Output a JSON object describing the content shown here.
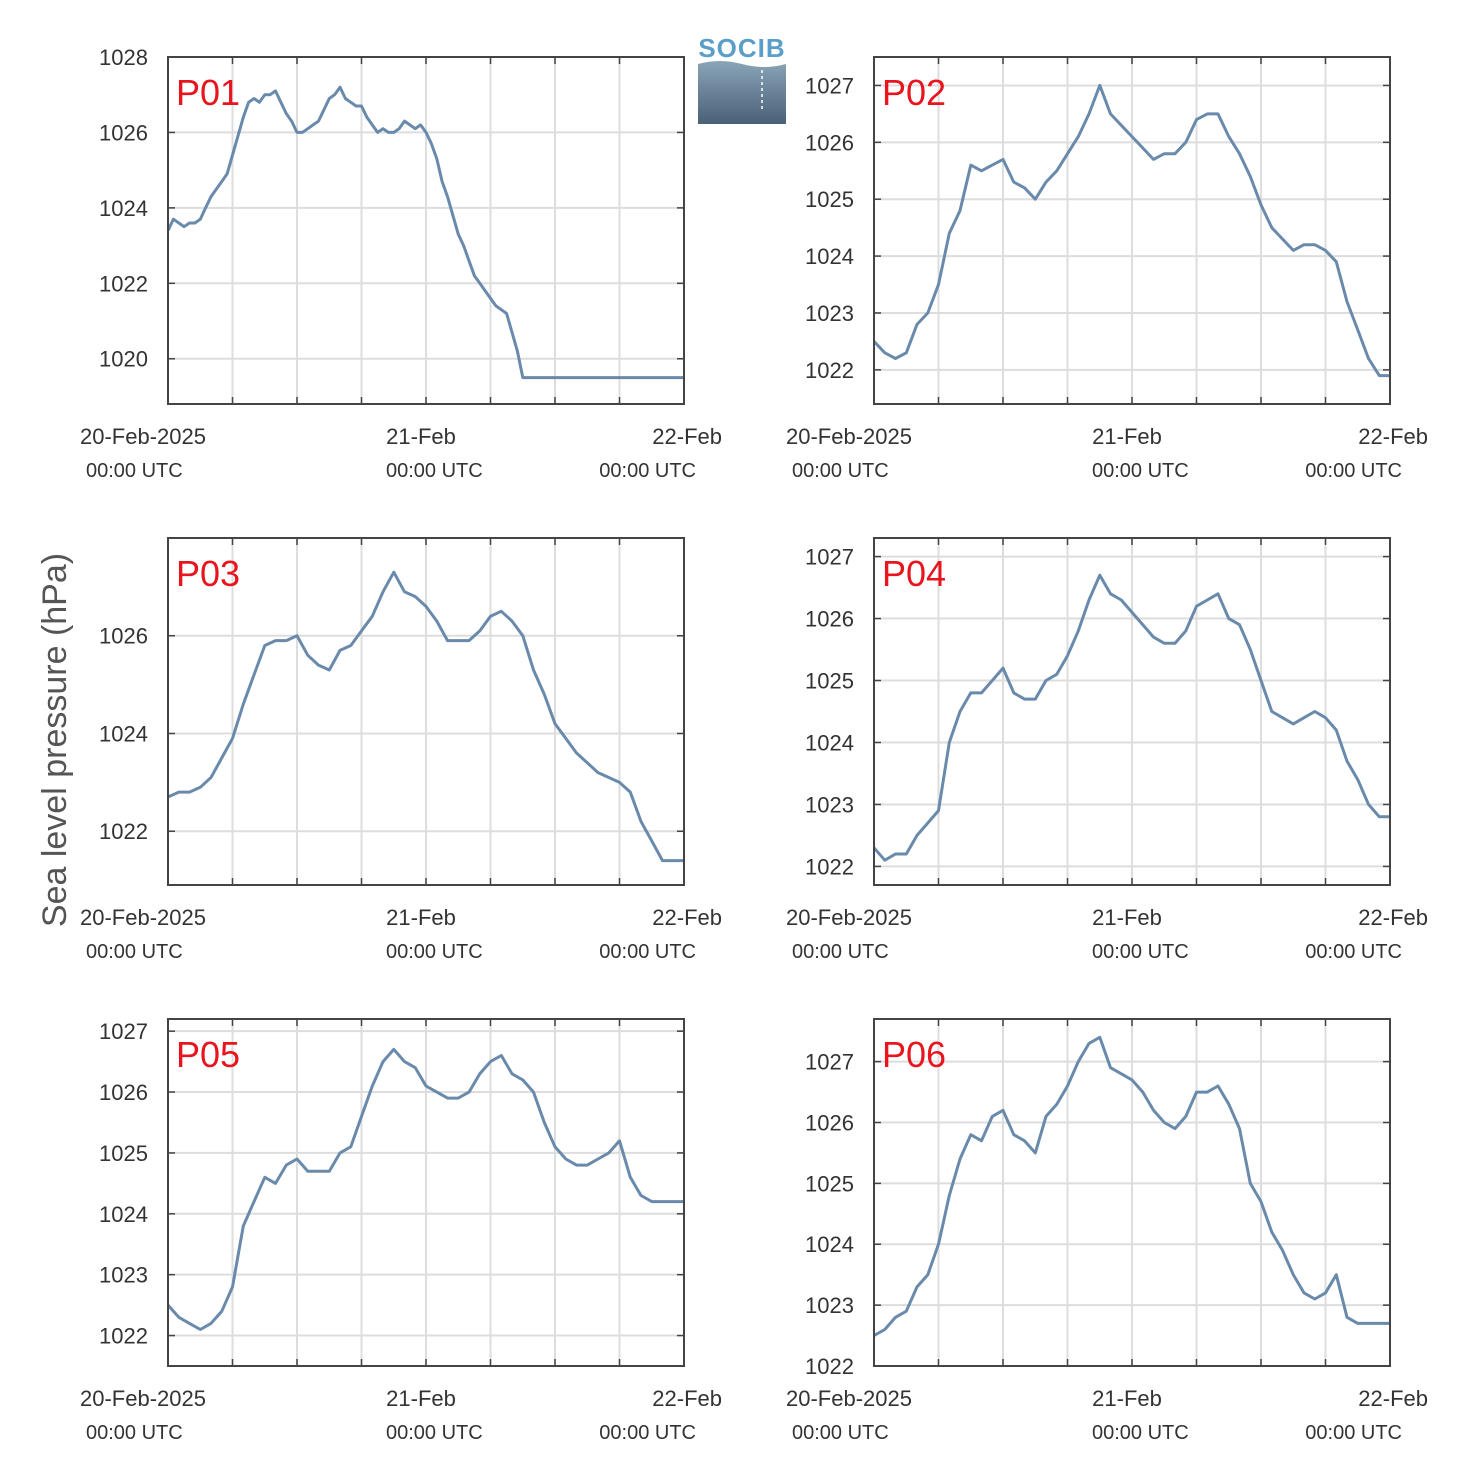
{
  "figure": {
    "ylabel": "Sea level pressure (hPa)",
    "logo_text": "SOCIB",
    "line_color": "#6a8aac",
    "title_color": "#e8141e",
    "grid_color": "#dddddd",
    "axis_color": "#444444"
  },
  "chart_data": [
    {
      "type": "line",
      "title": "P01",
      "x_unit": "hours since 20-Feb-2025 00:00 UTC",
      "x_ticks": [
        {
          "x": 0,
          "label": "20-Feb-2025",
          "sub": "00:00 UTC"
        },
        {
          "x": 24,
          "label": "21-Feb",
          "sub": "00:00 UTC"
        },
        {
          "x": 48,
          "label": "22-Feb",
          "sub": "00:00 UTC"
        }
      ],
      "xlim": [
        0,
        48
      ],
      "ylim": [
        1018.8,
        1028
      ],
      "y_ticks": [
        1020,
        1022,
        1024,
        1026,
        1028
      ],
      "grid": true,
      "x": [
        0,
        0.5,
        1,
        1.5,
        2,
        2.5,
        3,
        3.5,
        4,
        4.5,
        5,
        5.5,
        6,
        6.5,
        7,
        7.5,
        8,
        8.5,
        9,
        9.5,
        10,
        10.5,
        11,
        11.5,
        12,
        12.5,
        13,
        13.5,
        14,
        14.5,
        15,
        15.5,
        16,
        16.5,
        17,
        17.5,
        18,
        18.5,
        19,
        19.5,
        20,
        20.5,
        21,
        21.5,
        22,
        22.5,
        23,
        23.5,
        24,
        24.5,
        25,
        25.5,
        26,
        26.5,
        27,
        27.5,
        28,
        28.5,
        29,
        29.5,
        30,
        30.5,
        31,
        31.5,
        32,
        32.5,
        33,
        33.5,
        34,
        34.5,
        35,
        35.5,
        36,
        36.5,
        37,
        37.5,
        38,
        38.5,
        39,
        39.5,
        40,
        40.5,
        41,
        41.5,
        42,
        42.5,
        43,
        43.5,
        44,
        44.5,
        45,
        45.5,
        46,
        46.5,
        47,
        47.5,
        48
      ],
      "values": [
        1023.4,
        1023.7,
        1023.6,
        1023.5,
        1023.6,
        1023.6,
        1023.7,
        1024.0,
        1024.3,
        1024.5,
        1024.7,
        1024.9,
        1025.4,
        1025.9,
        1026.4,
        1026.8,
        1026.9,
        1026.8,
        1027.0,
        1027.0,
        1027.1,
        1026.8,
        1026.5,
        1026.3,
        1026.0,
        1026.0,
        1026.1,
        1026.2,
        1026.3,
        1026.6,
        1026.9,
        1027.0,
        1027.2,
        1026.9,
        1026.8,
        1026.7,
        1026.7,
        1026.4,
        1026.2,
        1026.0,
        1026.1,
        1026.0,
        1026.0,
        1026.1,
        1026.3,
        1026.2,
        1026.1,
        1026.2,
        1026.0,
        1025.7,
        1025.3,
        1024.7,
        1024.3,
        1023.8,
        1023.3,
        1023.0,
        1022.6,
        1022.2,
        1022.0,
        1021.8,
        1021.6,
        1021.4,
        1021.3,
        1021.2,
        1020.7,
        1020.2,
        1019.5,
        1019.5,
        1019.5,
        1019.5,
        1019.5,
        1019.5,
        1019.5,
        1019.5,
        1019.5,
        1019.5,
        1019.5,
        1019.5,
        1019.5,
        1019.5,
        1019.5,
        1019.5,
        1019.5,
        1019.5,
        1019.5,
        1019.5,
        1019.5,
        1019.5,
        1019.5,
        1019.5,
        1019.5,
        1019.5,
        1019.5,
        1019.5,
        1019.5,
        1019.5,
        1019.5
      ]
    },
    {
      "type": "line",
      "title": "P02",
      "xlim": [
        0,
        48
      ],
      "ylim": [
        1021.4,
        1027.5
      ],
      "y_ticks": [
        1022,
        1023,
        1024,
        1025,
        1026,
        1027
      ],
      "grid": true,
      "x_ticks": [
        {
          "x": 0,
          "label": "20-Feb-2025",
          "sub": "00:00 UTC"
        },
        {
          "x": 24,
          "label": "21-Feb",
          "sub": "00:00 UTC"
        },
        {
          "x": 48,
          "label": "22-Feb",
          "sub": "00:00 UTC"
        }
      ],
      "x": [
        0,
        1,
        2,
        3,
        4,
        5,
        6,
        7,
        8,
        9,
        10,
        11,
        12,
        13,
        14,
        15,
        16,
        17,
        18,
        19,
        20,
        21,
        22,
        23,
        24,
        25,
        26,
        27,
        28,
        29,
        30,
        31,
        32,
        33,
        34,
        35,
        36,
        37,
        38,
        39,
        40,
        41,
        42,
        43,
        44,
        45,
        46,
        47,
        48
      ],
      "values": [
        1022.5,
        1022.3,
        1022.2,
        1022.3,
        1022.8,
        1023.0,
        1023.5,
        1024.4,
        1024.8,
        1025.6,
        1025.5,
        1025.6,
        1025.7,
        1025.3,
        1025.2,
        1025.0,
        1025.3,
        1025.5,
        1025.8,
        1026.1,
        1026.5,
        1027.0,
        1026.5,
        1026.3,
        1026.1,
        1025.9,
        1025.7,
        1025.8,
        1025.8,
        1026.0,
        1026.4,
        1026.5,
        1026.5,
        1026.1,
        1025.8,
        1025.4,
        1024.9,
        1024.5,
        1024.3,
        1024.1,
        1024.2,
        1024.2,
        1024.1,
        1023.9,
        1023.2,
        1022.7,
        1022.2,
        1021.9,
        1021.9
      ]
    },
    {
      "type": "line",
      "title": "P03",
      "xlim": [
        0,
        48
      ],
      "ylim": [
        1020.9,
        1028
      ],
      "y_ticks": [
        1022,
        1024,
        1026
      ],
      "grid": true,
      "x_ticks": [
        {
          "x": 0,
          "label": "20-Feb-2025",
          "sub": "00:00 UTC"
        },
        {
          "x": 24,
          "label": "21-Feb",
          "sub": "00:00 UTC"
        },
        {
          "x": 48,
          "label": "22-Feb",
          "sub": "00:00 UTC"
        }
      ],
      "x": [
        0,
        1,
        2,
        3,
        4,
        5,
        6,
        7,
        8,
        9,
        10,
        11,
        12,
        13,
        14,
        15,
        16,
        17,
        18,
        19,
        20,
        21,
        22,
        23,
        24,
        25,
        26,
        27,
        28,
        29,
        30,
        31,
        32,
        33,
        34,
        35,
        36,
        37,
        38,
        39,
        40,
        41,
        42,
        43,
        44,
        45,
        46,
        47,
        48
      ],
      "values": [
        1022.7,
        1022.8,
        1022.8,
        1022.9,
        1023.1,
        1023.5,
        1023.9,
        1024.6,
        1025.2,
        1025.8,
        1025.9,
        1025.9,
        1026.0,
        1025.6,
        1025.4,
        1025.3,
        1025.7,
        1025.8,
        1026.1,
        1026.4,
        1026.9,
        1027.3,
        1026.9,
        1026.8,
        1026.6,
        1026.3,
        1025.9,
        1025.9,
        1025.9,
        1026.1,
        1026.4,
        1026.5,
        1026.3,
        1026.0,
        1025.3,
        1024.8,
        1024.2,
        1023.9,
        1023.6,
        1023.4,
        1023.2,
        1023.1,
        1023.0,
        1022.8,
        1022.2,
        1021.8,
        1021.4,
        1021.4,
        1021.4
      ]
    },
    {
      "type": "line",
      "title": "P04",
      "xlim": [
        0,
        48
      ],
      "ylim": [
        1021.7,
        1027.3
      ],
      "y_ticks": [
        1022,
        1023,
        1024,
        1025,
        1026,
        1027
      ],
      "grid": true,
      "x_ticks": [
        {
          "x": 0,
          "label": "20-Feb-2025",
          "sub": "00:00 UTC"
        },
        {
          "x": 24,
          "label": "21-Feb",
          "sub": "00:00 UTC"
        },
        {
          "x": 48,
          "label": "22-Feb",
          "sub": "00:00 UTC"
        }
      ],
      "x": [
        0,
        1,
        2,
        3,
        4,
        5,
        6,
        7,
        8,
        9,
        10,
        11,
        12,
        13,
        14,
        15,
        16,
        17,
        18,
        19,
        20,
        21,
        22,
        23,
        24,
        25,
        26,
        27,
        28,
        29,
        30,
        31,
        32,
        33,
        34,
        35,
        36,
        37,
        38,
        39,
        40,
        41,
        42,
        43,
        44,
        45,
        46,
        47,
        48
      ],
      "values": [
        1022.3,
        1022.1,
        1022.2,
        1022.2,
        1022.5,
        1022.7,
        1022.9,
        1024.0,
        1024.5,
        1024.8,
        1024.8,
        1025.0,
        1025.2,
        1024.8,
        1024.7,
        1024.7,
        1025.0,
        1025.1,
        1025.4,
        1025.8,
        1026.3,
        1026.7,
        1026.4,
        1026.3,
        1026.1,
        1025.9,
        1025.7,
        1025.6,
        1025.6,
        1025.8,
        1026.2,
        1026.3,
        1026.4,
        1026.0,
        1025.9,
        1025.5,
        1025.0,
        1024.5,
        1024.4,
        1024.3,
        1024.4,
        1024.5,
        1024.4,
        1024.2,
        1023.7,
        1023.4,
        1023.0,
        1022.8,
        1022.8
      ]
    },
    {
      "type": "line",
      "title": "P05",
      "xlim": [
        0,
        48
      ],
      "ylim": [
        1021.5,
        1027.2
      ],
      "y_ticks": [
        1022,
        1023,
        1024,
        1025,
        1026,
        1027
      ],
      "grid": true,
      "x_ticks": [
        {
          "x": 0,
          "label": "20-Feb-2025",
          "sub": "00:00 UTC"
        },
        {
          "x": 24,
          "label": "21-Feb",
          "sub": "00:00 UTC"
        },
        {
          "x": 48,
          "label": "22-Feb",
          "sub": "00:00 UTC"
        }
      ],
      "x": [
        0,
        1,
        2,
        3,
        4,
        5,
        6,
        7,
        8,
        9,
        10,
        11,
        12,
        13,
        14,
        15,
        16,
        17,
        18,
        19,
        20,
        21,
        22,
        23,
        24,
        25,
        26,
        27,
        28,
        29,
        30,
        31,
        32,
        33,
        34,
        35,
        36,
        37,
        38,
        39,
        40,
        41,
        42,
        43,
        44,
        45,
        46,
        47,
        48
      ],
      "values": [
        1022.5,
        1022.3,
        1022.2,
        1022.1,
        1022.2,
        1022.4,
        1022.8,
        1023.8,
        1024.2,
        1024.6,
        1024.5,
        1024.8,
        1024.9,
        1024.7,
        1024.7,
        1024.7,
        1025.0,
        1025.1,
        1025.6,
        1026.1,
        1026.5,
        1026.7,
        1026.5,
        1026.4,
        1026.1,
        1026.0,
        1025.9,
        1025.9,
        1026.0,
        1026.3,
        1026.5,
        1026.6,
        1026.3,
        1026.2,
        1026.0,
        1025.5,
        1025.1,
        1024.9,
        1024.8,
        1024.8,
        1024.9,
        1025.0,
        1025.2,
        1024.6,
        1024.3,
        1024.2,
        1024.2,
        1024.2,
        1024.2
      ]
    },
    {
      "type": "line",
      "title": "P06",
      "xlim": [
        0,
        48
      ],
      "ylim": [
        1022,
        1027.7
      ],
      "y_ticks": [
        1022,
        1023,
        1024,
        1025,
        1026,
        1027
      ],
      "grid": true,
      "x_ticks": [
        {
          "x": 0,
          "label": "20-Feb-2025",
          "sub": "00:00 UTC"
        },
        {
          "x": 24,
          "label": "21-Feb",
          "sub": "00:00 UTC"
        },
        {
          "x": 48,
          "label": "22-Feb",
          "sub": "00:00 UTC"
        }
      ],
      "x": [
        0,
        1,
        2,
        3,
        4,
        5,
        6,
        7,
        8,
        9,
        10,
        11,
        12,
        13,
        14,
        15,
        16,
        17,
        18,
        19,
        20,
        21,
        22,
        23,
        24,
        25,
        26,
        27,
        28,
        29,
        30,
        31,
        32,
        33,
        34,
        35,
        36,
        37,
        38,
        39,
        40,
        41,
        42,
        43,
        44,
        45,
        46,
        47,
        48
      ],
      "values": [
        1022.5,
        1022.6,
        1022.8,
        1022.9,
        1023.3,
        1023.5,
        1024.0,
        1024.8,
        1025.4,
        1025.8,
        1025.7,
        1026.1,
        1026.2,
        1025.8,
        1025.7,
        1025.5,
        1026.1,
        1026.3,
        1026.6,
        1027.0,
        1027.3,
        1027.4,
        1026.9,
        1026.8,
        1026.7,
        1026.5,
        1026.2,
        1026.0,
        1025.9,
        1026.1,
        1026.5,
        1026.5,
        1026.6,
        1026.3,
        1025.9,
        1025.0,
        1024.7,
        1024.2,
        1023.9,
        1023.5,
        1023.2,
        1023.1,
        1023.2,
        1023.5,
        1022.8,
        1022.7,
        1022.7,
        1022.7,
        1022.7
      ]
    }
  ]
}
